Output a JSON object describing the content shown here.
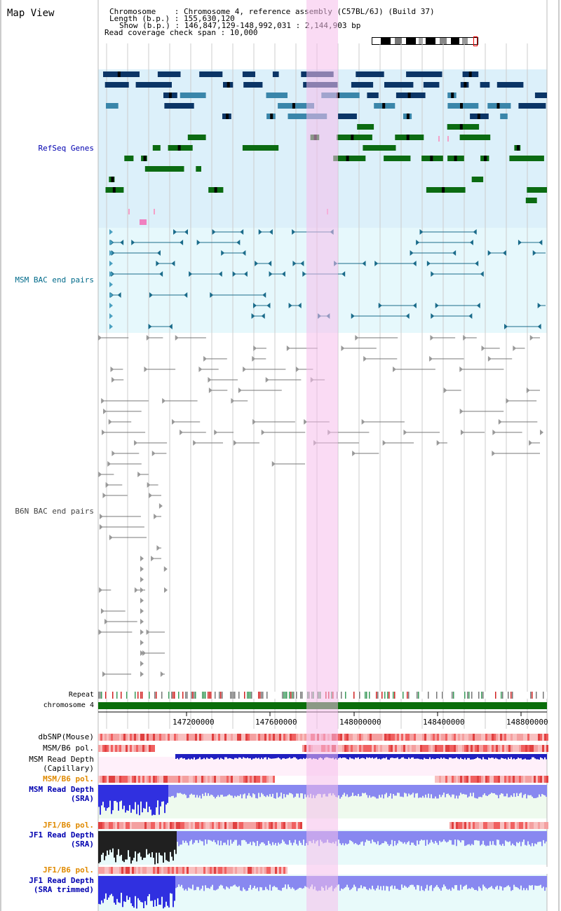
{
  "page": {
    "title": "Map View"
  },
  "info": {
    "chromosome_line": "Chromosome    : Chromosome 4, reference assembly (C57BL/6J) (Build 37)",
    "length_line": "Length (b.p.) : 155,630,120",
    "show_line": "Show (b.p.) : 146,847,129-148,992,031 : 2,144,903 bp",
    "span_line": "Read coverage check span : 10,000"
  },
  "tracks": {
    "refseq_label": "RefSeq Genes",
    "msm_bac_label": "MSM BAC end pairs",
    "b6n_bac_label": "B6N BAC end pairs",
    "repeat_label": "Repeat",
    "chromosome_label": "chromosome 4",
    "dbsnp_label": "dbSNP(Mouse)",
    "msm_pol_label": "MSM/B6 pol.",
    "msm_depth_cap_label1": "MSM Read Depth",
    "msm_depth_cap_label2": "(Capillary)",
    "msm_pol2_label": "MSM/B6 pol.",
    "msm_depth_sra_label1": "MSM Read Depth",
    "msm_depth_sra_label2": "(SRA)",
    "jf1_pol_label": "JF1/B6 pol.",
    "jf1_depth_label1": "JF1 Read Depth",
    "jf1_depth_label2": "(SRA)",
    "jf1_pol2_label": "JF1/B6 pol.",
    "jf1_trim_label1": "JF1 Read Depth",
    "jf1_trim_label2": "(SRA trimmed)"
  },
  "axis": {
    "ticks": [
      "147200000",
      "147600000",
      "148000000",
      "148400000",
      "148800000"
    ]
  },
  "colors": {
    "refseq_bg": "#dcf0fa",
    "msm_bac_bg": "#e6f8fc",
    "highlight": "#f8d8f0",
    "gene_dark": "#0b3566",
    "gene_mid": "#3a86aa",
    "gene_green": "#0b6b12",
    "bac_teal": "#1a6b8a",
    "bac_gray": "#777777",
    "chromosome_green": "#0a6e0a",
    "label_blue": "#0000b0",
    "label_teal": "#006a8a",
    "label_orange": "#e08a00",
    "depth_blue": "#3030e0",
    "depth_light": "#8888f0"
  }
}
